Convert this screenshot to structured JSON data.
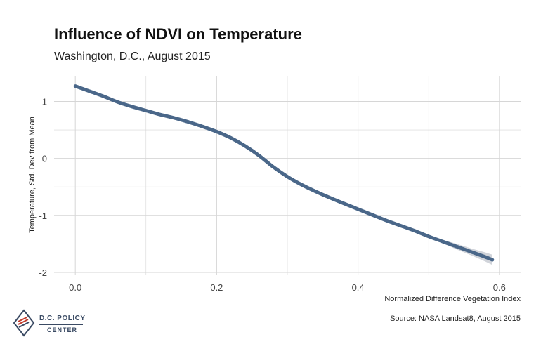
{
  "chart_data": {
    "type": "line",
    "title": "Influence of NDVI on Temperature",
    "subtitle": "Washington, D.C., August 2015",
    "xlabel": "Normalized Difference Vegetation Index",
    "ylabel": "Temperature, Std. Dev from Mean",
    "source": "Source: NASA Landsat8, August 2015",
    "xlim": [
      -0.03,
      0.63
    ],
    "ylim": [
      -2.05,
      1.45
    ],
    "x_ticks": [
      0.0,
      0.2,
      0.4,
      0.6
    ],
    "x_tick_labels": [
      "0.0",
      "0.2",
      "0.4",
      "0.6"
    ],
    "y_ticks": [
      1,
      0,
      -1,
      -2
    ],
    "y_tick_labels": [
      "1",
      "0",
      "-1",
      "-2"
    ],
    "grid": true,
    "series": [
      {
        "color": "#4a6789",
        "x": [
          0.0,
          0.02,
          0.04,
          0.06,
          0.08,
          0.1,
          0.12,
          0.14,
          0.16,
          0.18,
          0.2,
          0.22,
          0.24,
          0.26,
          0.28,
          0.3,
          0.32,
          0.34,
          0.36,
          0.38,
          0.4,
          0.42,
          0.44,
          0.46,
          0.48,
          0.5,
          0.52,
          0.54,
          0.56,
          0.58,
          0.59
        ],
        "y": [
          1.27,
          1.18,
          1.09,
          0.99,
          0.91,
          0.84,
          0.77,
          0.71,
          0.64,
          0.56,
          0.47,
          0.36,
          0.22,
          0.05,
          -0.15,
          -0.32,
          -0.46,
          -0.58,
          -0.69,
          -0.79,
          -0.89,
          -0.99,
          -1.09,
          -1.18,
          -1.27,
          -1.37,
          -1.46,
          -1.55,
          -1.64,
          -1.73,
          -1.78
        ],
        "ci_lower": [
          1.25,
          1.16,
          1.08,
          0.98,
          0.9,
          0.83,
          0.76,
          0.7,
          0.63,
          0.55,
          0.46,
          0.35,
          0.21,
          0.04,
          -0.16,
          -0.33,
          -0.47,
          -0.59,
          -0.7,
          -0.8,
          -0.9,
          -1.0,
          -1.1,
          -1.2,
          -1.29,
          -1.39,
          -1.49,
          -1.6,
          -1.7,
          -1.81,
          -1.87
        ],
        "ci_upper": [
          1.29,
          1.2,
          1.1,
          1.0,
          0.92,
          0.85,
          0.78,
          0.72,
          0.65,
          0.57,
          0.48,
          0.37,
          0.23,
          0.06,
          -0.14,
          -0.31,
          -0.45,
          -0.57,
          -0.68,
          -0.78,
          -0.88,
          -0.98,
          -1.08,
          -1.16,
          -1.25,
          -1.35,
          -1.43,
          -1.5,
          -1.58,
          -1.65,
          -1.69
        ]
      }
    ]
  },
  "logo": {
    "line1": "D.C. POLICY",
    "line2": "CENTER"
  },
  "colors": {
    "line": "#4a6789",
    "ribbon": "#c9ccd3",
    "grid": "#d6d6d6",
    "logo": "#3a4a63",
    "logo_accent": "#c0392b"
  }
}
